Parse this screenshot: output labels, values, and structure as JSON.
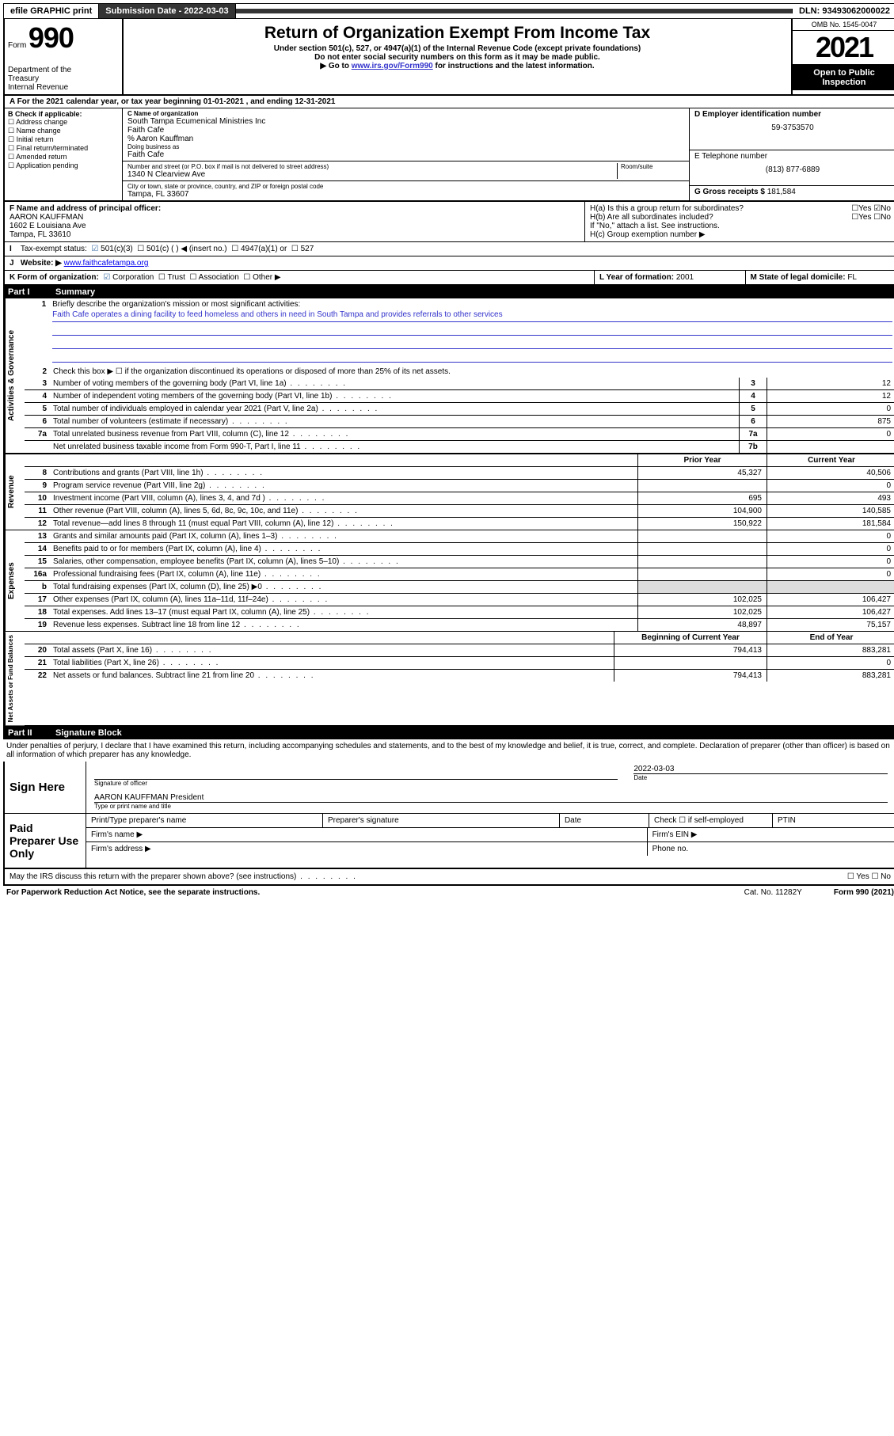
{
  "top_bar": {
    "efile": "efile GRAPHIC print",
    "submission_label": "Submission Date - 2022-03-03",
    "dln": "DLN: 93493062000022"
  },
  "header": {
    "form_prefix": "Form",
    "form_number": "990",
    "dept": "Department of the Treasury\nInternal Revenue Service",
    "title": "Return of Organization Exempt From Income Tax",
    "subtitle": "Under section 501(c), 527, or 4947(a)(1) of the Internal Revenue Code (except private foundations)",
    "note1": "Do not enter social security numbers on this form as it may be made public.",
    "note2_pre": "Go to ",
    "note2_link": "www.irs.gov/Form990",
    "note2_post": " for instructions and the latest information.",
    "omb": "OMB No. 1545-0047",
    "year": "2021",
    "open": "Open to Public Inspection"
  },
  "row_a": "For the 2021 calendar year, or tax year beginning 01-01-2021   , and ending 12-31-2021",
  "box_b": {
    "label": "B Check if applicable:",
    "opts": [
      "Address change",
      "Name change",
      "Initial return",
      "Final return/terminated",
      "Amended return",
      "Application pending"
    ]
  },
  "box_c": {
    "name_label": "C Name of organization",
    "name_lines": [
      "South Tampa Ecumenical Ministries Inc",
      "Faith Cafe",
      "% Aaron Kauffman"
    ],
    "dba_label": "Doing business as",
    "dba": "Faith Cafe",
    "street_label": "Number and street (or P.O. box if mail is not delivered to street address)",
    "room_label": "Room/suite",
    "street": "1340 N Clearview Ave",
    "city_label": "City or town, state or province, country, and ZIP or foreign postal code",
    "city": "Tampa, FL  33607"
  },
  "box_d": {
    "label": "D Employer identification number",
    "value": "59-3753570"
  },
  "box_e": {
    "label": "E Telephone number",
    "value": "(813) 877-6889"
  },
  "box_g": {
    "label": "G Gross receipts $",
    "value": "181,584"
  },
  "box_f": {
    "label": "F  Name and address of principal officer:",
    "lines": [
      "AARON KAUFFMAN",
      "1602 E Louisiana Ave",
      "Tampa, FL  33610"
    ]
  },
  "box_h": {
    "ha": "H(a)  Is this a group return for subordinates?",
    "hb": "H(b)  Are all subordinates included?",
    "hb_note": "If \"No,\" attach a list. See instructions.",
    "hc": "H(c)  Group exemption number ▶"
  },
  "box_i": "Tax-exempt status:",
  "box_i_opts": [
    "501(c)(3)",
    "501(c) (  ) ◀ (insert no.)",
    "4947(a)(1) or",
    "527"
  ],
  "box_j": {
    "label": "Website: ▶",
    "value": "www.faithcafetampa.org"
  },
  "box_k": "K Form of organization:",
  "box_k_opts": [
    "Corporation",
    "Trust",
    "Association",
    "Other ▶"
  ],
  "box_l": {
    "label": "L Year of formation:",
    "value": "2001"
  },
  "box_m": {
    "label": "M State of legal domicile:",
    "value": "FL"
  },
  "part1": {
    "title": "Summary",
    "q1_label": "Briefly describe the organization's mission or most significant activities:",
    "q1_text": "Faith Cafe operates a dining facility to feed homeless and others in need in South Tampa and provides referrals to other services",
    "q2": "Check this box ▶ ☐  if the organization discontinued its operations or disposed of more than 25% of its net assets.",
    "gov_rows": [
      {
        "n": "3",
        "d": "Number of voting members of the governing body (Part VI, line 1a)",
        "box": "3",
        "v": "12"
      },
      {
        "n": "4",
        "d": "Number of independent voting members of the governing body (Part VI, line 1b)",
        "box": "4",
        "v": "12"
      },
      {
        "n": "5",
        "d": "Total number of individuals employed in calendar year 2021 (Part V, line 2a)",
        "box": "5",
        "v": "0"
      },
      {
        "n": "6",
        "d": "Total number of volunteers (estimate if necessary)",
        "box": "6",
        "v": "875"
      },
      {
        "n": "7a",
        "d": "Total unrelated business revenue from Part VIII, column (C), line 12",
        "box": "7a",
        "v": "0"
      },
      {
        "n": "",
        "d": "Net unrelated business taxable income from Form 990-T, Part I, line 11",
        "box": "7b",
        "v": ""
      }
    ],
    "col_prior": "Prior Year",
    "col_current": "Current Year",
    "rev_rows": [
      {
        "n": "8",
        "d": "Contributions and grants (Part VIII, line 1h)",
        "p": "45,327",
        "c": "40,506"
      },
      {
        "n": "9",
        "d": "Program service revenue (Part VIII, line 2g)",
        "p": "",
        "c": "0"
      },
      {
        "n": "10",
        "d": "Investment income (Part VIII, column (A), lines 3, 4, and 7d )",
        "p": "695",
        "c": "493"
      },
      {
        "n": "11",
        "d": "Other revenue (Part VIII, column (A), lines 5, 6d, 8c, 9c, 10c, and 11e)",
        "p": "104,900",
        "c": "140,585"
      },
      {
        "n": "12",
        "d": "Total revenue—add lines 8 through 11 (must equal Part VIII, column (A), line 12)",
        "p": "150,922",
        "c": "181,584"
      }
    ],
    "exp_rows": [
      {
        "n": "13",
        "d": "Grants and similar amounts paid (Part IX, column (A), lines 1–3)",
        "p": "",
        "c": "0"
      },
      {
        "n": "14",
        "d": "Benefits paid to or for members (Part IX, column (A), line 4)",
        "p": "",
        "c": "0"
      },
      {
        "n": "15",
        "d": "Salaries, other compensation, employee benefits (Part IX, column (A), lines 5–10)",
        "p": "",
        "c": "0"
      },
      {
        "n": "16a",
        "d": "Professional fundraising fees (Part IX, column (A), line 11e)",
        "p": "",
        "c": "0"
      },
      {
        "n": "b",
        "d": "Total fundraising expenses (Part IX, column (D), line 25) ▶0",
        "p": "gray",
        "c": "gray"
      },
      {
        "n": "17",
        "d": "Other expenses (Part IX, column (A), lines 11a–11d, 11f–24e)",
        "p": "102,025",
        "c": "106,427"
      },
      {
        "n": "18",
        "d": "Total expenses. Add lines 13–17 (must equal Part IX, column (A), line 25)",
        "p": "102,025",
        "c": "106,427"
      },
      {
        "n": "19",
        "d": "Revenue less expenses. Subtract line 18 from line 12",
        "p": "48,897",
        "c": "75,157"
      }
    ],
    "col_begin": "Beginning of Current Year",
    "col_end": "End of Year",
    "net_rows": [
      {
        "n": "20",
        "d": "Total assets (Part X, line 16)",
        "p": "794,413",
        "c": "883,281"
      },
      {
        "n": "21",
        "d": "Total liabilities (Part X, line 26)",
        "p": "",
        "c": "0"
      },
      {
        "n": "22",
        "d": "Net assets or fund balances. Subtract line 21 from line 20",
        "p": "794,413",
        "c": "883,281"
      }
    ],
    "vtabs": [
      "Activities & Governance",
      "Revenue",
      "Expenses",
      "Net Assets or Fund Balances"
    ]
  },
  "part2": {
    "title": "Signature Block",
    "perjury": "Under penalties of perjury, I declare that I have examined this return, including accompanying schedules and statements, and to the best of my knowledge and belief, it is true, correct, and complete. Declaration of preparer (other than officer) is based on all information of which preparer has any knowledge.",
    "sign_here": "Sign Here",
    "sig_officer": "Signature of officer",
    "sig_date": "2022-03-03",
    "date_label": "Date",
    "officer_name": "AARON KAUFFMAN President",
    "officer_caption": "Type or print name and title",
    "paid": "Paid Preparer Use Only",
    "paid_headers": [
      "Print/Type preparer's name",
      "Preparer's signature",
      "Date"
    ],
    "paid_check": "Check ☐ if self-employed",
    "ptin": "PTIN",
    "firm_name": "Firm's name  ▶",
    "firm_ein": "Firm's EIN ▶",
    "firm_addr": "Firm's address ▶",
    "phone": "Phone no.",
    "discuss": "May the IRS discuss this return with the preparer shown above? (see instructions)",
    "discuss_opts": "☐ Yes  ☐ No"
  },
  "footer": {
    "left": "For Paperwork Reduction Act Notice, see the separate instructions.",
    "mid": "Cat. No. 11282Y",
    "right": "Form 990 (2021)"
  }
}
